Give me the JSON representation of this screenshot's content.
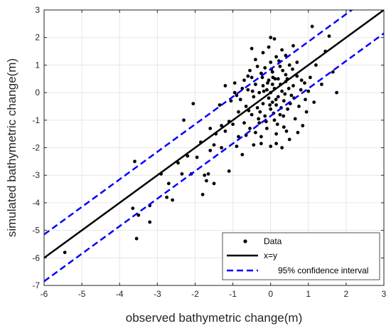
{
  "chart_data": {
    "type": "scatter",
    "title": "",
    "xlabel": "observed bathymetric change(m)",
    "ylabel": "simulated bathymetric change(m)",
    "xlim": [
      -6,
      3
    ],
    "ylim": [
      -7,
      3
    ],
    "xticks": [
      -6,
      -5,
      -4,
      -3,
      -2,
      -1,
      0,
      1,
      2,
      3
    ],
    "yticks": [
      -7,
      -6,
      -5,
      -4,
      -3,
      -2,
      -1,
      0,
      1,
      2,
      3
    ],
    "grid": true,
    "legend_position": "bottom-right",
    "colors": {
      "data": "#000000",
      "fit": "#000000",
      "confidence": "#0000ff",
      "grid": "#e6e6e6",
      "axis": "#262626"
    },
    "series": [
      {
        "name": "Data",
        "kind": "scatter",
        "points": [
          [
            -5.45,
            -5.8
          ],
          [
            -3.65,
            -4.2
          ],
          [
            -3.6,
            -2.5
          ],
          [
            -3.55,
            -5.3
          ],
          [
            -3.5,
            -4.45
          ],
          [
            -3.2,
            -4.1
          ],
          [
            -3.2,
            -4.7
          ],
          [
            -2.9,
            -2.95
          ],
          [
            -2.75,
            -3.8
          ],
          [
            -2.7,
            -3.3
          ],
          [
            -2.6,
            -3.9
          ],
          [
            -2.45,
            -2.55
          ],
          [
            -2.35,
            -2.95
          ],
          [
            -2.3,
            -1.0
          ],
          [
            -2.2,
            -2.3
          ],
          [
            -2.1,
            -2.95
          ],
          [
            -2.05,
            -0.4
          ],
          [
            -1.95,
            -2.35
          ],
          [
            -1.85,
            -1.8
          ],
          [
            -1.8,
            -3.7
          ],
          [
            -1.75,
            -3.0
          ],
          [
            -1.7,
            -3.2
          ],
          [
            -1.65,
            -2.95
          ],
          [
            -1.6,
            -1.3
          ],
          [
            -1.6,
            -2.1
          ],
          [
            -1.5,
            -1.9
          ],
          [
            -1.5,
            -3.3
          ],
          [
            -1.45,
            -1.5
          ],
          [
            -1.35,
            -0.45
          ],
          [
            -1.3,
            -1.2
          ],
          [
            -1.3,
            -2.0
          ],
          [
            -1.2,
            -1.4
          ],
          [
            -1.1,
            -2.85
          ],
          [
            -1.1,
            -1.05
          ],
          [
            -1.05,
            -0.3
          ],
          [
            -1.0,
            -1.15
          ],
          [
            -0.95,
            0.0
          ],
          [
            -0.95,
            0.35
          ],
          [
            -0.9,
            -0.1
          ],
          [
            -0.85,
            -1.6
          ],
          [
            -0.85,
            -0.7
          ],
          [
            -0.8,
            -0.25
          ],
          [
            -0.75,
            0.15
          ],
          [
            -0.75,
            -2.25
          ],
          [
            -0.7,
            0.45
          ],
          [
            -0.65,
            -0.5
          ],
          [
            -0.6,
            0.1
          ],
          [
            -0.55,
            -1.3
          ],
          [
            -0.55,
            0.8
          ],
          [
            -0.5,
            -0.8
          ],
          [
            -0.5,
            0.55
          ],
          [
            -0.45,
            -0.15
          ],
          [
            -0.45,
            -1.9
          ],
          [
            -0.4,
            1.2
          ],
          [
            -0.4,
            0.3
          ],
          [
            -0.35,
            -0.55
          ],
          [
            -0.3,
            0.0
          ],
          [
            -0.3,
            -1.1
          ],
          [
            -0.25,
            0.7
          ],
          [
            -0.25,
            -1.6
          ],
          [
            -0.2,
            1.45
          ],
          [
            -0.2,
            0.25
          ],
          [
            -0.2,
            -0.4
          ],
          [
            -0.15,
            -0.85
          ],
          [
            -0.15,
            0.9
          ],
          [
            -0.1,
            0.1
          ],
          [
            -0.1,
            -1.3
          ],
          [
            -0.05,
            1.65
          ],
          [
            -0.05,
            -0.2
          ],
          [
            -0.05,
            0.45
          ],
          [
            0.0,
            0.0
          ],
          [
            0.0,
            -0.6
          ],
          [
            0.0,
            1.1
          ],
          [
            0.0,
            -1.95
          ],
          [
            0.05,
            0.3
          ],
          [
            0.05,
            -0.35
          ],
          [
            0.05,
            0.75
          ],
          [
            0.1,
            -1.0
          ],
          [
            0.1,
            1.95
          ],
          [
            0.1,
            0.15
          ],
          [
            0.15,
            -0.45
          ],
          [
            0.15,
            1.3
          ],
          [
            0.15,
            -1.5
          ],
          [
            0.2,
            0.5
          ],
          [
            0.2,
            -0.15
          ],
          [
            0.25,
            -0.8
          ],
          [
            0.25,
            0.95
          ],
          [
            0.3,
            0.05
          ],
          [
            0.3,
            1.55
          ],
          [
            0.35,
            -0.3
          ],
          [
            0.35,
            -1.25
          ],
          [
            0.4,
            0.4
          ],
          [
            0.4,
            0.65
          ],
          [
            0.45,
            -0.6
          ],
          [
            0.5,
            1.0
          ],
          [
            0.5,
            -1.7
          ],
          [
            0.55,
            -0.1
          ],
          [
            0.6,
            0.25
          ],
          [
            0.65,
            -0.95
          ],
          [
            0.7,
            0.6
          ],
          [
            0.75,
            -0.5
          ],
          [
            0.8,
            0.1
          ],
          [
            0.85,
            -1.2
          ],
          [
            0.9,
            0.35
          ],
          [
            0.95,
            -0.7
          ],
          [
            1.0,
            0.05
          ],
          [
            1.05,
            0.55
          ],
          [
            1.1,
            2.4
          ],
          [
            1.15,
            -0.35
          ],
          [
            1.2,
            1.0
          ],
          [
            1.35,
            0.3
          ],
          [
            1.45,
            1.5
          ],
          [
            1.55,
            2.05
          ],
          [
            1.65,
            0.75
          ],
          [
            1.75,
            0.0
          ],
          [
            -0.65,
            -1.55
          ],
          [
            -0.6,
            0.6
          ],
          [
            -0.4,
            -1.45
          ],
          [
            -0.35,
            0.95
          ],
          [
            -0.28,
            -0.7
          ],
          [
            -0.22,
            0.55
          ],
          [
            -0.12,
            -1.05
          ],
          [
            -0.08,
            0.35
          ],
          [
            0.02,
            0.85
          ],
          [
            0.08,
            -0.75
          ],
          [
            0.12,
            0.5
          ],
          [
            0.18,
            -1.15
          ],
          [
            0.22,
            1.15
          ],
          [
            0.28,
            -0.55
          ],
          [
            0.32,
            0.8
          ],
          [
            0.38,
            -0.05
          ],
          [
            0.42,
            -1.4
          ],
          [
            0.48,
            0.15
          ],
          [
            0.52,
            -0.4
          ],
          [
            0.58,
            0.85
          ],
          [
            -0.7,
            -1.1
          ],
          [
            -0.58,
            -0.65
          ],
          [
            -0.48,
            0.05
          ],
          [
            -0.32,
            -0.95
          ],
          [
            -0.18,
            0.05
          ],
          [
            -0.02,
            -0.45
          ],
          [
            0.06,
            0.55
          ],
          [
            0.14,
            -0.25
          ],
          [
            0.26,
            0.3
          ],
          [
            0.34,
            -0.85
          ],
          [
            0.44,
            0.5
          ],
          [
            0.62,
            -0.2
          ],
          [
            0.72,
            -1.45
          ],
          [
            0.82,
            0.45
          ],
          [
            0.92,
            -0.25
          ],
          [
            -1.2,
            0.25
          ],
          [
            -0.9,
            -1.95
          ],
          [
            0.6,
            1.7
          ],
          [
            0.0,
            2.0
          ],
          [
            -0.5,
            1.6
          ],
          [
            0.3,
            -2.0
          ],
          [
            0.15,
            -1.85
          ],
          [
            -0.25,
            -1.85
          ],
          [
            0.4,
            1.35
          ],
          [
            0.7,
            1.1
          ]
        ]
      },
      {
        "name": "x=y",
        "kind": "line",
        "points": [
          [
            -6,
            -6
          ],
          [
            3,
            3
          ]
        ]
      },
      {
        "name": "95% confidence interval",
        "kind": "dashed-line",
        "points": [
          [
            -6,
            -5.15
          ],
          [
            3,
            3.85
          ]
        ]
      },
      {
        "name": "",
        "kind": "dashed-line",
        "points": [
          [
            -6,
            -6.85
          ],
          [
            3,
            2.15
          ]
        ]
      }
    ]
  }
}
